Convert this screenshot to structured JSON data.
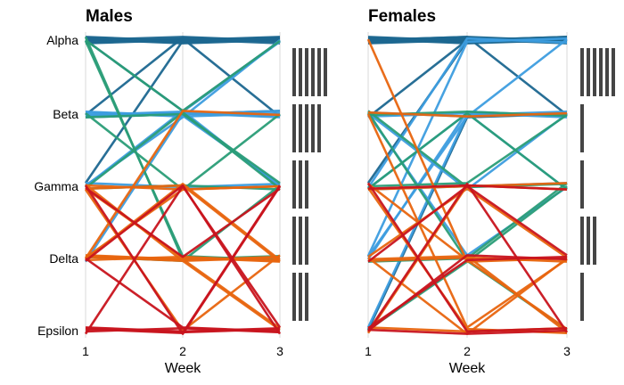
{
  "chart_data": [
    {
      "type": "line",
      "title": "Males",
      "xlabel": "Week",
      "ylabel": "",
      "x": [
        1,
        2,
        3
      ],
      "x_ticks": [
        "1",
        "2",
        "3"
      ],
      "categories": [
        "Alpha",
        "Beta",
        "Gamma",
        "Delta",
        "Epsilon"
      ],
      "grid": "vertical",
      "series": [
        {
          "color": "#1c6790",
          "values": [
            [
              "Alpha",
              "Alpha",
              "Alpha"
            ],
            [
              "Alpha",
              "Alpha",
              "Alpha"
            ],
            [
              "Alpha",
              "Alpha",
              "Alpha"
            ],
            [
              "Alpha",
              "Alpha",
              "Alpha"
            ],
            [
              "Alpha",
              "Alpha",
              "Alpha"
            ],
            [
              "Alpha",
              "Alpha",
              "Alpha"
            ],
            [
              "Alpha",
              "Alpha",
              "Beta"
            ],
            [
              "Alpha",
              "Alpha",
              "Alpha"
            ],
            [
              "Beta",
              "Alpha",
              "Alpha"
            ],
            [
              "Gamma",
              "Alpha",
              "Alpha"
            ],
            [
              "Alpha",
              "Beta",
              "Alpha"
            ],
            [
              "Beta",
              "Beta",
              "Beta"
            ]
          ]
        },
        {
          "color": "#3d9ddf",
          "values": [
            [
              "Beta",
              "Beta",
              "Beta"
            ],
            [
              "Beta",
              "Beta",
              "Beta"
            ],
            [
              "Beta",
              "Beta",
              "Beta"
            ],
            [
              "Beta",
              "Beta",
              "Gamma"
            ],
            [
              "Beta",
              "Beta",
              "Alpha"
            ],
            [
              "Gamma",
              "Gamma",
              "Gamma"
            ],
            [
              "Gamma",
              "Beta",
              "Gamma"
            ],
            [
              "Delta",
              "Beta",
              "Beta"
            ],
            [
              "Gamma",
              "Beta",
              "Alpha"
            ]
          ]
        },
        {
          "color": "#2a9d77",
          "values": [
            [
              "Alpha",
              "Delta",
              "Delta"
            ],
            [
              "Alpha",
              "Delta",
              "Delta"
            ],
            [
              "Alpha",
              "Beta",
              "Alpha"
            ],
            [
              "Beta",
              "Beta",
              "Gamma"
            ],
            [
              "Beta",
              "Gamma",
              "Beta"
            ],
            [
              "Gamma",
              "Gamma",
              "Gamma"
            ],
            [
              "Delta",
              "Delta",
              "Gamma"
            ],
            [
              "Gamma",
              "Beta",
              "Gamma"
            ]
          ]
        },
        {
          "color": "#e8650f",
          "values": [
            [
              "Gamma",
              "Gamma",
              "Gamma"
            ],
            [
              "Gamma",
              "Gamma",
              "Delta"
            ],
            [
              "Gamma",
              "Delta",
              "Delta"
            ],
            [
              "Delta",
              "Delta",
              "Delta"
            ],
            [
              "Delta",
              "Delta",
              "Delta"
            ],
            [
              "Delta",
              "Gamma",
              "Delta"
            ],
            [
              "Delta",
              "Delta",
              "Epsilon"
            ],
            [
              "Delta",
              "Beta",
              "Beta"
            ],
            [
              "Gamma",
              "Epsilon",
              "Delta"
            ],
            [
              "Delta",
              "Gamma",
              "Gamma"
            ],
            [
              "Gamma",
              "Delta",
              "Delta"
            ],
            [
              "Delta",
              "Delta",
              "Epsilon"
            ]
          ]
        },
        {
          "color": "#c8141e",
          "values": [
            [
              "Epsilon",
              "Epsilon",
              "Epsilon"
            ],
            [
              "Epsilon",
              "Epsilon",
              "Epsilon"
            ],
            [
              "Epsilon",
              "Epsilon",
              "Epsilon"
            ],
            [
              "Delta",
              "Epsilon",
              "Epsilon"
            ],
            [
              "Epsilon",
              "Gamma",
              "Epsilon"
            ],
            [
              "Gamma",
              "Epsilon",
              "Gamma"
            ],
            [
              "Delta",
              "Gamma",
              "Epsilon"
            ],
            [
              "Epsilon",
              "Epsilon",
              "Gamma"
            ],
            [
              "Gamma",
              "Delta",
              "Gamma"
            ]
          ]
        }
      ],
      "side_bars": {
        "Alpha": 6,
        "Beta": 5,
        "Gamma": 3,
        "Delta": 3,
        "Epsilon": 3
      }
    },
    {
      "type": "line",
      "title": "Females",
      "xlabel": "Week",
      "ylabel": "",
      "x": [
        1,
        2,
        3
      ],
      "x_ticks": [
        "1",
        "2",
        "3"
      ],
      "categories": [
        "Alpha",
        "Beta",
        "Gamma",
        "Delta",
        "Epsilon"
      ],
      "grid": "vertical",
      "series": [
        {
          "color": "#1c6790",
          "values": [
            [
              "Alpha",
              "Alpha",
              "Alpha"
            ],
            [
              "Alpha",
              "Alpha",
              "Alpha"
            ],
            [
              "Alpha",
              "Alpha",
              "Alpha"
            ],
            [
              "Alpha",
              "Alpha",
              "Alpha"
            ],
            [
              "Alpha",
              "Alpha",
              "Alpha"
            ],
            [
              "Alpha",
              "Alpha",
              "Alpha"
            ],
            [
              "Alpha",
              "Alpha",
              "Alpha"
            ],
            [
              "Alpha",
              "Alpha",
              "Alpha"
            ],
            [
              "Alpha",
              "Alpha",
              "Alpha"
            ],
            [
              "Gamma",
              "Alpha",
              "Alpha"
            ],
            [
              "Alpha",
              "Alpha",
              "Beta"
            ],
            [
              "Beta",
              "Alpha",
              "Alpha"
            ],
            [
              "Epsilon",
              "Beta",
              "Beta"
            ]
          ]
        },
        {
          "color": "#3d9ddf",
          "values": [
            [
              "Beta",
              "Beta",
              "Beta"
            ],
            [
              "Beta",
              "Beta",
              "Alpha"
            ],
            [
              "Gamma",
              "Alpha",
              "Alpha"
            ],
            [
              "Delta",
              "Alpha",
              "Alpha"
            ],
            [
              "Delta",
              "Beta",
              "Beta"
            ],
            [
              "Epsilon",
              "Beta",
              "Beta"
            ],
            [
              "Beta",
              "Delta",
              "Gamma"
            ],
            [
              "Gamma",
              "Gamma",
              "Gamma"
            ],
            [
              "Beta",
              "Gamma",
              "Beta"
            ],
            [
              "Gamma",
              "Beta",
              "Gamma"
            ],
            [
              "Delta",
              "Beta",
              "Beta"
            ]
          ]
        },
        {
          "color": "#2a9d77",
          "values": [
            [
              "Beta",
              "Beta",
              "Beta"
            ],
            [
              "Beta",
              "Gamma",
              "Gamma"
            ],
            [
              "Gamma",
              "Gamma",
              "Beta"
            ],
            [
              "Delta",
              "Delta",
              "Gamma"
            ],
            [
              "Epsilon",
              "Delta",
              "Gamma"
            ],
            [
              "Gamma",
              "Beta",
              "Gamma"
            ],
            [
              "Beta",
              "Delta",
              "Epsilon"
            ]
          ]
        },
        {
          "color": "#e8650f",
          "values": [
            [
              "Alpha",
              "Delta",
              "Delta"
            ],
            [
              "Delta",
              "Delta",
              "Delta"
            ],
            [
              "Delta",
              "Gamma",
              "Delta"
            ],
            [
              "Gamma",
              "Epsilon",
              "Epsilon"
            ],
            [
              "Gamma",
              "Delta",
              "Epsilon"
            ],
            [
              "Delta",
              "Delta",
              "Epsilon"
            ],
            [
              "Epsilon",
              "Epsilon",
              "Epsilon"
            ],
            [
              "Beta",
              "Epsilon",
              "Delta"
            ],
            [
              "Gamma",
              "Gamma",
              "Gamma"
            ],
            [
              "Delta",
              "Epsilon",
              "Delta"
            ],
            [
              "Epsilon",
              "Gamma",
              "Gamma"
            ],
            [
              "Beta",
              "Beta",
              "Beta"
            ]
          ]
        },
        {
          "color": "#c8141e",
          "values": [
            [
              "Epsilon",
              "Delta",
              "Delta"
            ],
            [
              "Epsilon",
              "Gamma",
              "Epsilon"
            ],
            [
              "Gamma",
              "Epsilon",
              "Epsilon"
            ],
            [
              "Epsilon",
              "Delta",
              "Delta"
            ],
            [
              "Delta",
              "Gamma",
              "Delta"
            ],
            [
              "Epsilon",
              "Epsilon",
              "Epsilon"
            ],
            [
              "Gamma",
              "Gamma",
              "Gamma"
            ]
          ]
        }
      ],
      "side_bars": {
        "Alpha": 6,
        "Beta": 1,
        "Gamma": 1,
        "Delta": 3,
        "Epsilon": 1
      }
    }
  ]
}
